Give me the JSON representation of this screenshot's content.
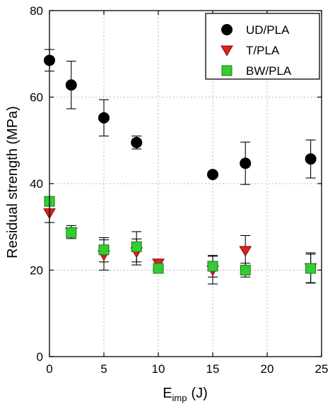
{
  "chart_data": {
    "type": "scatter",
    "title": "",
    "xlabel": "E",
    "xlabel_sub": "imp",
    "xlabel_unit": "(J)",
    "ylabel": "Residual strength (MPa)",
    "xlim": [
      0,
      25
    ],
    "ylim": [
      0,
      80
    ],
    "x_ticks": [
      "0",
      "5",
      "10",
      "15",
      "20",
      "25"
    ],
    "y_ticks": [
      "0",
      "20",
      "40",
      "60",
      "80"
    ],
    "grid": true,
    "legend_position": "top-right",
    "series": [
      {
        "name": "UD/PLA",
        "marker": "circle",
        "color": "#000000",
        "x": [
          0,
          2,
          5,
          8,
          15,
          18,
          24
        ],
        "y": [
          68.5,
          62.8,
          55.2,
          49.5,
          42.1,
          44.7,
          45.7
        ],
        "err": [
          2.5,
          5.5,
          4.2,
          1.5,
          0.5,
          4.9,
          4.4
        ]
      },
      {
        "name": "T/PLA",
        "marker": "triangle-down",
        "color": "#e02020",
        "x": [
          0,
          2,
          5,
          8,
          10,
          15,
          18,
          24
        ],
        "y": [
          33.2,
          28.8,
          23.5,
          24.2,
          21.6,
          20.0,
          24.5,
          20.5
        ],
        "err": [
          2.2,
          1.5,
          3.5,
          3.0,
          0.6,
          3.2,
          3.5,
          3.5
        ]
      },
      {
        "name": "BW/PLA",
        "marker": "square",
        "color": "#33cc33",
        "x": [
          0,
          2,
          5,
          8,
          10,
          15,
          18,
          24
        ],
        "y": [
          35.9,
          28.7,
          24.7,
          25.4,
          20.4,
          20.9,
          20.0,
          20.4
        ],
        "err": [
          0.5,
          1.0,
          2.8,
          3.5,
          0.5,
          2.5,
          1.6,
          3.3
        ]
      }
    ]
  }
}
